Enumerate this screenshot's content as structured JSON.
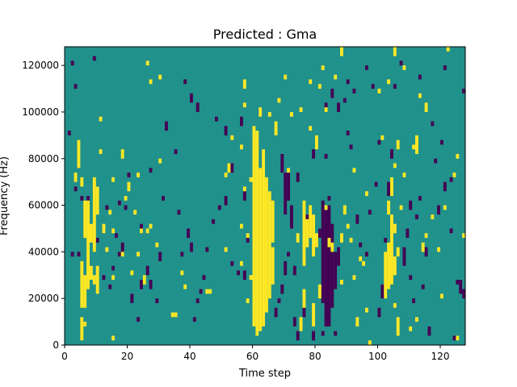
{
  "chart_data": {
    "type": "heatmap",
    "title": "Predicted : Gma",
    "xlabel": "Time step",
    "ylabel": "Frequency (Hz)",
    "xlim": [
      0,
      128
    ],
    "ylim": [
      0,
      128000
    ],
    "x_ticks": [
      0,
      20,
      40,
      60,
      80,
      100,
      120
    ],
    "y_ticks": [
      0,
      20000,
      40000,
      60000,
      80000,
      100000,
      120000
    ],
    "x_tick_labels": [
      "0",
      "20",
      "40",
      "60",
      "80",
      "100",
      "120"
    ],
    "y_tick_labels": [
      "0",
      "20000",
      "40000",
      "60000",
      "80000",
      "100000",
      "120000"
    ],
    "grid": false,
    "colors": {
      "background": "#21918c",
      "high": "#fde725",
      "low": "#440154"
    },
    "cell_size": {
      "time_steps": 1,
      "frequency_hz": 2000
    },
    "high_cells": [
      [
        5,
        2000,
        12000
      ],
      [
        6,
        8000,
        10000
      ],
      [
        5,
        16000,
        36000
      ],
      [
        6,
        16000,
        30000
      ],
      [
        7,
        24000,
        34000
      ],
      [
        8,
        28000,
        34000
      ],
      [
        9,
        26000,
        30000
      ],
      [
        10,
        22000,
        34000
      ],
      [
        6,
        46000,
        62000
      ],
      [
        7,
        30000,
        62000
      ],
      [
        8,
        44000,
        52000
      ],
      [
        9,
        40000,
        72000
      ],
      [
        10,
        56000,
        68000
      ],
      [
        3,
        70000,
        74000
      ],
      [
        4,
        76000,
        88000
      ],
      [
        5,
        68000,
        72000
      ],
      [
        9,
        68000,
        70000
      ],
      [
        13,
        40000,
        42000
      ],
      [
        12,
        48000,
        52000
      ],
      [
        14,
        56000,
        58000
      ],
      [
        15,
        70000,
        72000
      ],
      [
        11,
        96000,
        98000
      ],
      [
        11,
        82000,
        84000
      ],
      [
        15,
        2000,
        4000
      ],
      [
        15,
        48000,
        50000
      ],
      [
        15,
        28000,
        30000
      ],
      [
        21,
        30000,
        32000
      ],
      [
        18,
        38000,
        40000
      ],
      [
        23,
        38000,
        40000
      ],
      [
        24,
        48000,
        50000
      ],
      [
        26,
        48000,
        50000
      ],
      [
        22,
        56000,
        58000
      ],
      [
        19,
        62000,
        64000
      ],
      [
        23,
        72000,
        74000
      ],
      [
        18,
        80000,
        84000
      ],
      [
        20,
        66000,
        70000
      ],
      [
        29,
        42000,
        44000
      ],
      [
        25,
        26000,
        30000
      ],
      [
        27,
        50000,
        52000
      ],
      [
        30,
        78000,
        80000
      ],
      [
        27,
        112000,
        114000
      ],
      [
        26,
        120000,
        122000
      ],
      [
        30,
        114000,
        116000
      ],
      [
        34,
        12000,
        14000
      ],
      [
        35,
        12000,
        14000
      ],
      [
        37,
        30000,
        32000
      ],
      [
        38,
        24000,
        26000
      ],
      [
        45,
        22000,
        24000
      ],
      [
        46,
        22000,
        24000
      ],
      [
        51,
        40000,
        42000
      ],
      [
        51,
        72000,
        74000
      ],
      [
        52,
        74000,
        78000
      ],
      [
        56,
        34000,
        36000
      ],
      [
        56,
        50000,
        52000
      ],
      [
        53,
        88000,
        90000
      ],
      [
        58,
        18000,
        20000
      ],
      [
        58,
        46000,
        48000
      ],
      [
        57,
        66000,
        68000
      ],
      [
        56,
        84000,
        86000
      ],
      [
        57,
        102000,
        104000
      ],
      [
        57,
        110000,
        114000
      ],
      [
        59,
        28000,
        30000
      ],
      [
        59,
        70000,
        72000
      ],
      [
        60,
        8000,
        94000
      ],
      [
        61,
        4000,
        92000
      ],
      [
        62,
        6000,
        76000
      ],
      [
        63,
        8000,
        84000
      ],
      [
        64,
        14000,
        72000
      ],
      [
        65,
        20000,
        66000
      ],
      [
        66,
        26000,
        42000
      ],
      [
        66,
        44000,
        62000
      ],
      [
        67,
        90000,
        96000
      ],
      [
        68,
        104000,
        106000
      ],
      [
        72,
        98000,
        100000
      ],
      [
        74,
        44000,
        48000
      ],
      [
        75,
        6000,
        12000
      ],
      [
        76,
        16000,
        24000
      ],
      [
        76,
        34000,
        62000
      ],
      [
        77,
        42000,
        54000
      ],
      [
        78,
        46000,
        60000
      ],
      [
        79,
        38000,
        56000
      ],
      [
        80,
        42000,
        48000
      ],
      [
        79,
        8000,
        18000
      ],
      [
        81,
        20000,
        26000
      ],
      [
        78,
        92000,
        94000
      ],
      [
        80,
        84000,
        90000
      ],
      [
        78,
        112000,
        114000
      ],
      [
        81,
        110000,
        112000
      ],
      [
        85,
        40000,
        44000
      ],
      [
        88,
        26000,
        28000
      ],
      [
        88,
        44000,
        48000
      ],
      [
        89,
        56000,
        60000
      ],
      [
        90,
        50000,
        52000
      ],
      [
        91,
        44000,
        46000
      ],
      [
        92,
        28000,
        30000
      ],
      [
        93,
        8000,
        12000
      ],
      [
        94,
        36000,
        38000
      ],
      [
        96,
        14000,
        16000
      ],
      [
        97,
        0,
        2000
      ],
      [
        95,
        34000,
        36000
      ],
      [
        96,
        64000,
        66000
      ],
      [
        102,
        20000,
        40000
      ],
      [
        103,
        24000,
        44000
      ],
      [
        104,
        26000,
        40000
      ],
      [
        105,
        30000,
        38000
      ],
      [
        103,
        56000,
        62000
      ],
      [
        104,
        40000,
        56000
      ],
      [
        105,
        48000,
        52000
      ],
      [
        106,
        38000,
        42000
      ],
      [
        104,
        64000,
        72000
      ],
      [
        106,
        4000,
        12000
      ],
      [
        105,
        16000,
        18000
      ],
      [
        105,
        76000,
        78000
      ],
      [
        106,
        84000,
        88000
      ],
      [
        107,
        58000,
        60000
      ],
      [
        108,
        72000,
        74000
      ],
      [
        110,
        6000,
        8000
      ],
      [
        112,
        10000,
        12000
      ],
      [
        111,
        84000,
        86000
      ],
      [
        112,
        82000,
        90000
      ],
      [
        114,
        40000,
        44000
      ],
      [
        115,
        46000,
        48000
      ],
      [
        117,
        54000,
        56000
      ],
      [
        119,
        40000,
        42000
      ],
      [
        120,
        20000,
        22000
      ],
      [
        121,
        58000,
        60000
      ],
      [
        124,
        72000,
        74000
      ],
      [
        125,
        80000,
        82000
      ],
      [
        127,
        46000,
        48000
      ],
      [
        128,
        38000,
        40000
      ],
      [
        128,
        62000,
        66000
      ],
      [
        125,
        2000,
        4000
      ],
      [
        122,
        126000,
        128000
      ],
      [
        105,
        124000,
        128000
      ],
      [
        108,
        118000,
        120000
      ],
      [
        113,
        106000,
        108000
      ],
      [
        115,
        100000,
        104000
      ],
      [
        101,
        88000,
        90000
      ],
      [
        100,
        108000,
        110000
      ],
      [
        103,
        112000,
        114000
      ],
      [
        88,
        124000,
        128000
      ],
      [
        70,
        114000,
        116000
      ],
      [
        82,
        118000,
        120000
      ],
      [
        86,
        114000,
        116000
      ],
      [
        83,
        100000,
        102000
      ],
      [
        75,
        100000,
        102000
      ],
      [
        62,
        98000,
        102000
      ],
      [
        65,
        98000,
        100000
      ],
      [
        71,
        74000,
        76000
      ],
      [
        92,
        74000,
        76000
      ],
      [
        83,
        58000,
        60000
      ],
      [
        84,
        42000,
        46000
      ]
    ],
    "low_cells": [
      [
        2,
        120000,
        122000
      ],
      [
        3,
        110000,
        112000
      ],
      [
        2,
        38000,
        40000
      ],
      [
        4,
        38000,
        40000
      ],
      [
        3,
        66000,
        68000
      ],
      [
        5,
        62000,
        64000
      ],
      [
        1,
        90000,
        92000
      ],
      [
        7,
        62000,
        64000
      ],
      [
        10,
        44000,
        46000
      ],
      [
        10,
        60000,
        62000
      ],
      [
        8,
        32000,
        34000
      ],
      [
        9,
        122000,
        124000
      ],
      [
        12,
        28000,
        30000
      ],
      [
        13,
        58000,
        60000
      ],
      [
        14,
        24000,
        26000
      ],
      [
        15,
        32000,
        34000
      ],
      [
        16,
        46000,
        48000
      ],
      [
        17,
        38000,
        40000
      ],
      [
        18,
        40000,
        44000
      ],
      [
        17,
        60000,
        62000
      ],
      [
        19,
        58000,
        60000
      ],
      [
        20,
        72000,
        74000
      ],
      [
        21,
        18000,
        22000
      ],
      [
        23,
        10000,
        12000
      ],
      [
        24,
        48000,
        52000
      ],
      [
        24,
        24000,
        28000
      ],
      [
        26,
        30000,
        34000
      ],
      [
        27,
        24000,
        28000
      ],
      [
        27,
        74000,
        76000
      ],
      [
        29,
        18000,
        20000
      ],
      [
        30,
        36000,
        40000
      ],
      [
        31,
        62000,
        64000
      ],
      [
        32,
        92000,
        96000
      ],
      [
        35,
        82000,
        84000
      ],
      [
        36,
        56000,
        58000
      ],
      [
        37,
        38000,
        40000
      ],
      [
        39,
        46000,
        50000
      ],
      [
        40,
        40000,
        44000
      ],
      [
        41,
        10000,
        12000
      ],
      [
        42,
        18000,
        20000
      ],
      [
        43,
        22000,
        24000
      ],
      [
        44,
        28000,
        30000
      ],
      [
        45,
        40000,
        42000
      ],
      [
        47,
        52000,
        54000
      ],
      [
        49,
        58000,
        60000
      ],
      [
        51,
        60000,
        64000
      ],
      [
        53,
        34000,
        36000
      ],
      [
        55,
        30000,
        32000
      ],
      [
        57,
        28000,
        32000
      ],
      [
        58,
        44000,
        46000
      ],
      [
        57,
        62000,
        66000
      ],
      [
        56,
        94000,
        98000
      ],
      [
        53,
        74000,
        78000
      ],
      [
        40,
        104000,
        108000
      ],
      [
        38,
        112000,
        114000
      ],
      [
        42,
        100000,
        104000
      ],
      [
        48,
        96000,
        98000
      ],
      [
        51,
        90000,
        94000
      ],
      [
        67,
        12000,
        16000
      ],
      [
        68,
        18000,
        20000
      ],
      [
        69,
        22000,
        26000
      ],
      [
        70,
        30000,
        36000
      ],
      [
        71,
        38000,
        40000
      ],
      [
        69,
        74000,
        82000
      ],
      [
        70,
        56000,
        74000
      ],
      [
        71,
        62000,
        74000
      ],
      [
        72,
        50000,
        60000
      ],
      [
        74,
        70000,
        74000
      ],
      [
        73,
        30000,
        34000
      ],
      [
        73,
        8000,
        12000
      ],
      [
        74,
        2000,
        6000
      ],
      [
        76,
        12000,
        16000
      ],
      [
        77,
        48000,
        56000
      ],
      [
        79,
        2000,
        6000
      ],
      [
        80,
        42000,
        46000
      ],
      [
        81,
        46000,
        50000
      ],
      [
        82,
        18000,
        62000
      ],
      [
        83,
        8000,
        58000
      ],
      [
        84,
        14000,
        60000
      ],
      [
        85,
        16000,
        52000
      ],
      [
        86,
        28000,
        40000
      ],
      [
        87,
        34000,
        42000
      ],
      [
        86,
        24000,
        28000
      ],
      [
        84,
        8000,
        14000
      ],
      [
        83,
        80000,
        82000
      ],
      [
        79,
        80000,
        84000
      ],
      [
        84,
        62000,
        64000
      ],
      [
        83,
        100000,
        104000
      ],
      [
        85,
        106000,
        110000
      ],
      [
        87,
        100000,
        104000
      ],
      [
        82,
        4000,
        6000
      ],
      [
        86,
        4000,
        6000
      ],
      [
        89,
        104000,
        106000
      ],
      [
        90,
        112000,
        114000
      ],
      [
        91,
        84000,
        86000
      ],
      [
        93,
        52000,
        56000
      ],
      [
        94,
        42000,
        44000
      ],
      [
        96,
        38000,
        40000
      ],
      [
        97,
        56000,
        58000
      ],
      [
        99,
        68000,
        70000
      ],
      [
        100,
        86000,
        88000
      ],
      [
        100,
        12000,
        16000
      ],
      [
        101,
        20000,
        26000
      ],
      [
        102,
        44000,
        46000
      ],
      [
        103,
        64000,
        70000
      ],
      [
        104,
        80000,
        84000
      ],
      [
        105,
        110000,
        112000
      ],
      [
        107,
        120000,
        122000
      ],
      [
        108,
        34000,
        42000
      ],
      [
        109,
        46000,
        50000
      ],
      [
        110,
        58000,
        62000
      ],
      [
        110,
        28000,
        30000
      ],
      [
        111,
        18000,
        20000
      ],
      [
        112,
        54000,
        56000
      ],
      [
        113,
        62000,
        64000
      ],
      [
        113,
        114000,
        116000
      ],
      [
        114,
        24000,
        26000
      ],
      [
        116,
        4000,
        8000
      ],
      [
        115,
        38000,
        42000
      ],
      [
        117,
        94000,
        96000
      ],
      [
        118,
        78000,
        80000
      ],
      [
        119,
        56000,
        60000
      ],
      [
        120,
        86000,
        88000
      ],
      [
        121,
        66000,
        70000
      ],
      [
        121,
        118000,
        120000
      ],
      [
        123,
        70000,
        72000
      ],
      [
        124,
        2000,
        4000
      ],
      [
        125,
        26000,
        28000
      ],
      [
        126,
        22000,
        28000
      ],
      [
        127,
        20000,
        24000
      ],
      [
        127,
        108000,
        110000
      ],
      [
        123,
        48000,
        50000
      ],
      [
        98,
        110000,
        112000
      ],
      [
        96,
        118000,
        120000
      ],
      [
        90,
        90000,
        92000
      ],
      [
        92,
        108000,
        110000
      ]
    ]
  }
}
